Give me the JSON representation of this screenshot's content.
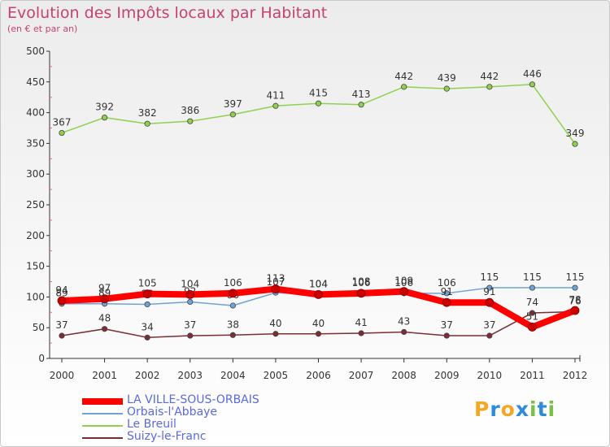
{
  "chart_data": {
    "type": "line",
    "title": "Evolution des Impôts locaux par Habitant",
    "subtitle": "(en € et par an)",
    "ylim": [
      0,
      500
    ],
    "yticks": [
      0,
      50,
      100,
      150,
      200,
      250,
      300,
      350,
      400,
      450,
      500
    ],
    "x": [
      "2000",
      "2001",
      "2002",
      "2003",
      "2004",
      "2005",
      "2006",
      "2007",
      "2008",
      "2009",
      "2010",
      "2011",
      "2012"
    ],
    "grid": false,
    "legend_position": "bottom-left",
    "series": [
      {
        "name": "Le Breuil",
        "color": "#8fd14f",
        "values": [
          367,
          392,
          382,
          386,
          397,
          411,
          415,
          413,
          442,
          439,
          442,
          446,
          349
        ]
      },
      {
        "name": "Orbais-l'Abbaye",
        "color": "#6fa3d6",
        "values": [
          89,
          89,
          88,
          92,
          86,
          107,
          104,
          108,
          106,
          106,
          115,
          115,
          115
        ]
      },
      {
        "name": "Suizy-le-Franc",
        "color": "#7a2e34",
        "values": [
          37,
          48,
          34,
          37,
          38,
          40,
          40,
          41,
          43,
          37,
          37,
          74,
          76
        ]
      },
      {
        "name": "LA VILLE-SOUS-ORBAIS",
        "color": "#ff0000",
        "values": [
          94,
          97,
          105,
          104,
          106,
          113,
          104,
          106,
          109,
          91,
          91,
          51,
          78
        ]
      }
    ],
    "legend": [
      {
        "name": "LA VILLE-SOUS-ORBAIS",
        "color": "#ff0000",
        "thick": true
      },
      {
        "name": "Orbais-l'Abbaye",
        "color": "#6fa3d6",
        "thick": false
      },
      {
        "name": "Le Breuil",
        "color": "#8fd14f",
        "thick": false
      },
      {
        "name": "Suizy-le-Franc",
        "color": "#7a2e34",
        "thick": false
      }
    ]
  },
  "logo": {
    "text": "Proxiti",
    "letter_colors": [
      "#f5a623",
      "#2e8bd8",
      "#f5a623",
      "#2e8bd8",
      "#7ac143",
      "#2e8bd8",
      "#7ac143"
    ]
  }
}
